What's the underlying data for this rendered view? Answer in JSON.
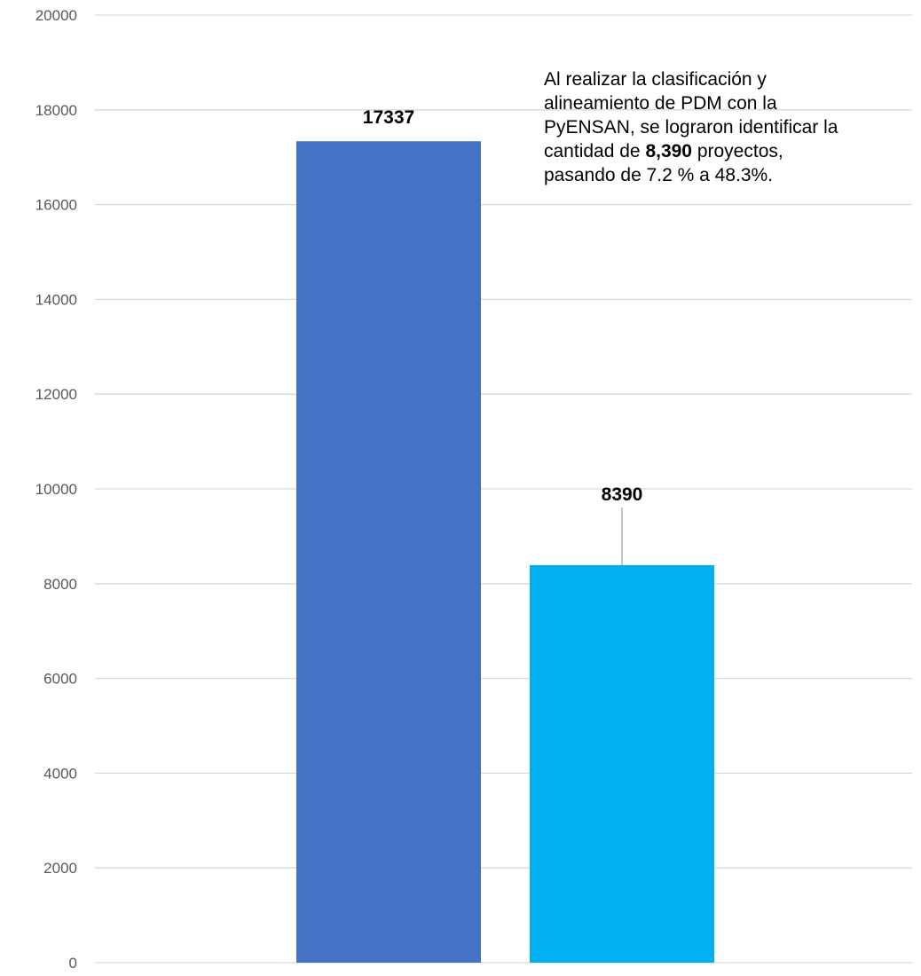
{
  "chart_data": {
    "type": "bar",
    "categories": [
      "",
      ""
    ],
    "values": [
      17337,
      8390
    ],
    "title": "",
    "xlabel": "",
    "ylabel": "",
    "ylim": [
      0,
      20000
    ],
    "yticks": [
      0,
      2000,
      4000,
      6000,
      8000,
      10000,
      12000,
      14000,
      16000,
      18000,
      20000
    ],
    "grid": true,
    "data_labels": [
      "17337",
      "8390"
    ],
    "colors": [
      "#4472c4",
      "#00b0f0"
    ],
    "gridline_color": "#d9d9d9",
    "annotation": {
      "line1": "Al realizar la clasificación y",
      "line2": "alineamiento de PDM con la",
      "line3": "PyENSAN,  se lograron identificar la",
      "line4_pre": "cantidad de ",
      "line4_bold": "8,390",
      "line4_post": " proyectos,",
      "line5": "pasando de 7.2 %  a  48.3%."
    }
  }
}
